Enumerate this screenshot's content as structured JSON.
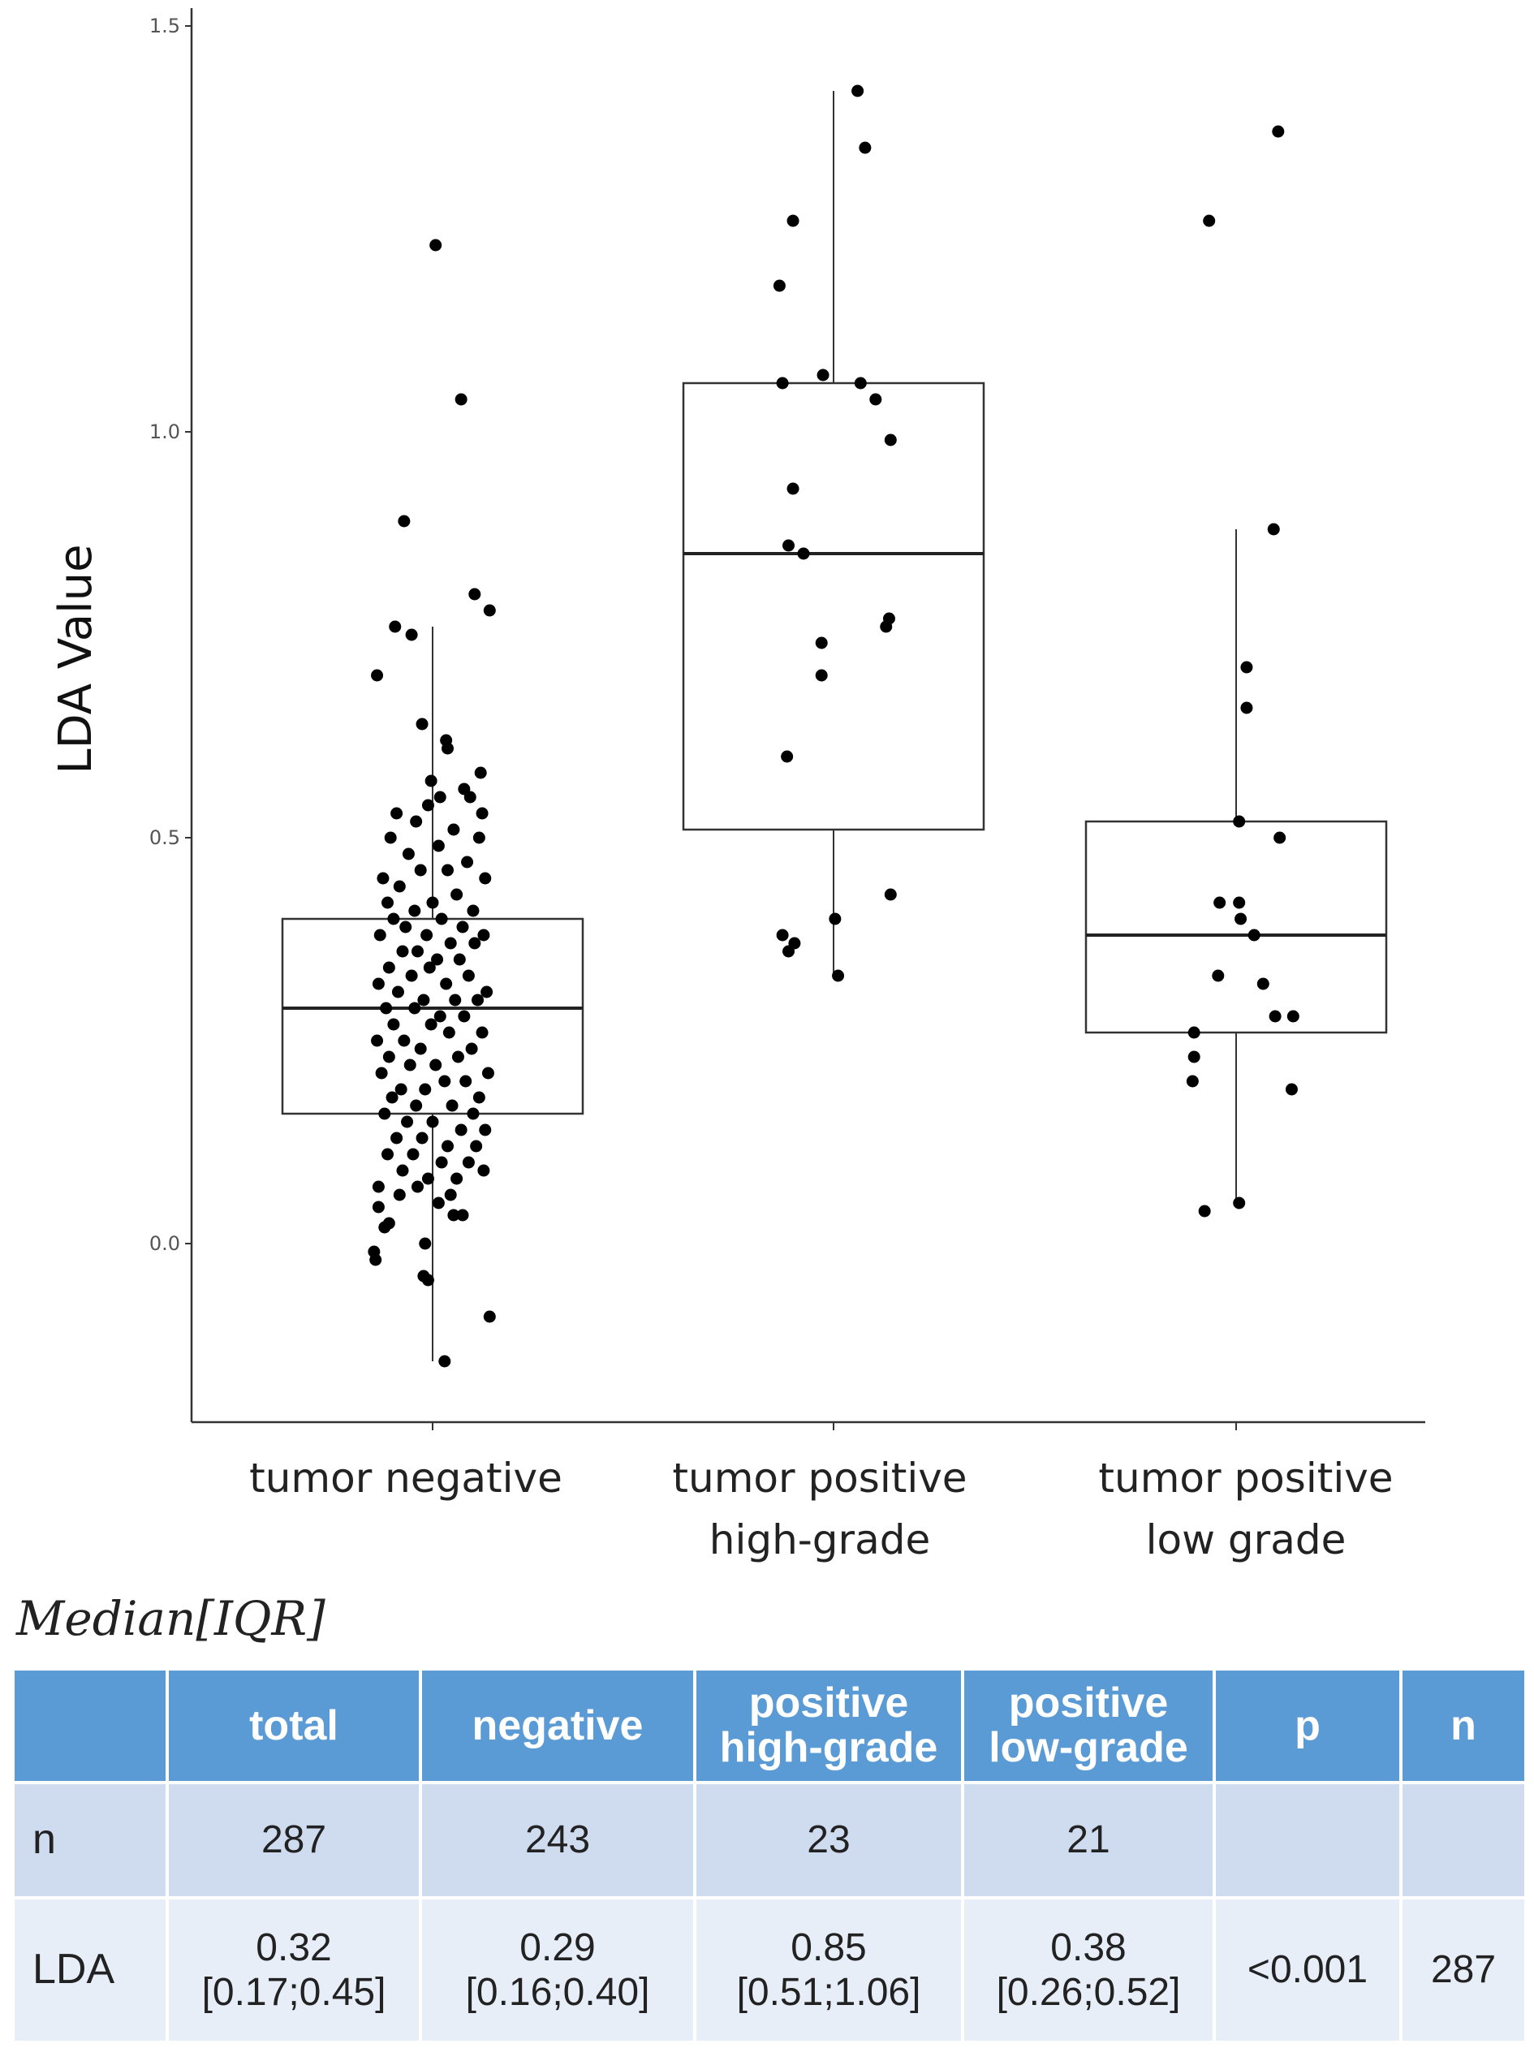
{
  "chart_data": {
    "type": "box",
    "title": "",
    "xlabel": "",
    "ylabel": "LDA Value",
    "ylim": [
      -0.22,
      1.52
    ],
    "yticks": [
      "0.0",
      "0.5",
      "1.0",
      "1.5"
    ],
    "categories": [
      "tumor negative",
      "tumor positive high-grade",
      "tumor positive low grade"
    ],
    "category_label_lines": [
      [
        "tumor negative"
      ],
      [
        "tumor positive",
        "high-grade"
      ],
      [
        "tumor positive",
        "low grade"
      ]
    ],
    "boxes": [
      {
        "name": "tumor negative",
        "q1": 0.16,
        "median": 0.29,
        "q3": 0.4,
        "whisker_low": -0.145,
        "whisker_high": 0.76
      },
      {
        "name": "tumor positive high-grade",
        "q1": 0.51,
        "median": 0.85,
        "q3": 1.06,
        "whisker_low": 0.33,
        "whisker_high": 1.42
      },
      {
        "name": "tumor positive low grade",
        "q1": 0.26,
        "median": 0.38,
        "q3": 0.52,
        "whisker_low": 0.05,
        "whisker_high": 0.88
      }
    ],
    "points": [
      {
        "group": 0,
        "jitter": 0.02,
        "value": 1.23
      },
      {
        "group": 0,
        "jitter": 0.19,
        "value": 1.04
      },
      {
        "group": 0,
        "jitter": -0.19,
        "value": 0.89
      },
      {
        "group": 0,
        "jitter": 0.28,
        "value": 0.8
      },
      {
        "group": 0,
        "jitter": 0.38,
        "value": 0.78
      },
      {
        "group": 0,
        "jitter": -0.25,
        "value": 0.76
      },
      {
        "group": 0,
        "jitter": -0.14,
        "value": 0.75
      },
      {
        "group": 0,
        "jitter": -0.37,
        "value": 0.7
      },
      {
        "group": 0,
        "jitter": -0.07,
        "value": 0.64
      },
      {
        "group": 0,
        "jitter": 0.09,
        "value": 0.62
      },
      {
        "group": 0,
        "jitter": 0.1,
        "value": 0.61
      },
      {
        "group": 0,
        "jitter": 0.32,
        "value": 0.58
      },
      {
        "group": 0,
        "jitter": -0.01,
        "value": 0.57
      },
      {
        "group": 0,
        "jitter": 0.21,
        "value": 0.56
      },
      {
        "group": 0,
        "jitter": 0.05,
        "value": 0.55
      },
      {
        "group": 0,
        "jitter": 0.25,
        "value": 0.55
      },
      {
        "group": 0,
        "jitter": -0.03,
        "value": 0.54
      },
      {
        "group": 0,
        "jitter": 0.33,
        "value": 0.53
      },
      {
        "group": 0,
        "jitter": -0.24,
        "value": 0.53
      },
      {
        "group": 0,
        "jitter": -0.11,
        "value": 0.52
      },
      {
        "group": 0,
        "jitter": 0.14,
        "value": 0.51
      },
      {
        "group": 0,
        "jitter": -0.28,
        "value": 0.5
      },
      {
        "group": 0,
        "jitter": 0.31,
        "value": 0.5
      },
      {
        "group": 0,
        "jitter": 0.04,
        "value": 0.49
      },
      {
        "group": 0,
        "jitter": -0.16,
        "value": 0.48
      },
      {
        "group": 0,
        "jitter": 0.23,
        "value": 0.47
      },
      {
        "group": 0,
        "jitter": -0.08,
        "value": 0.46
      },
      {
        "group": 0,
        "jitter": 0.1,
        "value": 0.46
      },
      {
        "group": 0,
        "jitter": 0.35,
        "value": 0.45
      },
      {
        "group": 0,
        "jitter": -0.33,
        "value": 0.45
      },
      {
        "group": 0,
        "jitter": -0.22,
        "value": 0.44
      },
      {
        "group": 0,
        "jitter": 0.16,
        "value": 0.43
      },
      {
        "group": 0,
        "jitter": 0.0,
        "value": 0.42
      },
      {
        "group": 0,
        "jitter": -0.3,
        "value": 0.42
      },
      {
        "group": 0,
        "jitter": -0.12,
        "value": 0.41
      },
      {
        "group": 0,
        "jitter": 0.27,
        "value": 0.41
      },
      {
        "group": 0,
        "jitter": -0.26,
        "value": 0.4
      },
      {
        "group": 0,
        "jitter": 0.06,
        "value": 0.4
      },
      {
        "group": 0,
        "jitter": 0.2,
        "value": 0.39
      },
      {
        "group": 0,
        "jitter": -0.18,
        "value": 0.39
      },
      {
        "group": 0,
        "jitter": 0.34,
        "value": 0.38
      },
      {
        "group": 0,
        "jitter": -0.04,
        "value": 0.38
      },
      {
        "group": 0,
        "jitter": -0.35,
        "value": 0.38
      },
      {
        "group": 0,
        "jitter": 0.12,
        "value": 0.37
      },
      {
        "group": 0,
        "jitter": 0.28,
        "value": 0.37
      },
      {
        "group": 0,
        "jitter": -0.2,
        "value": 0.36
      },
      {
        "group": 0,
        "jitter": -0.1,
        "value": 0.36
      },
      {
        "group": 0,
        "jitter": 0.03,
        "value": 0.35
      },
      {
        "group": 0,
        "jitter": 0.18,
        "value": 0.35
      },
      {
        "group": 0,
        "jitter": -0.29,
        "value": 0.34
      },
      {
        "group": 0,
        "jitter": -0.02,
        "value": 0.34
      },
      {
        "group": 0,
        "jitter": -0.14,
        "value": 0.33
      },
      {
        "group": 0,
        "jitter": 0.24,
        "value": 0.33
      },
      {
        "group": 0,
        "jitter": -0.36,
        "value": 0.32
      },
      {
        "group": 0,
        "jitter": 0.09,
        "value": 0.32
      },
      {
        "group": 0,
        "jitter": 0.36,
        "value": 0.31
      },
      {
        "group": 0,
        "jitter": -0.23,
        "value": 0.31
      },
      {
        "group": 0,
        "jitter": -0.06,
        "value": 0.3
      },
      {
        "group": 0,
        "jitter": 0.15,
        "value": 0.3
      },
      {
        "group": 0,
        "jitter": 0.3,
        "value": 0.3
      },
      {
        "group": 0,
        "jitter": -0.31,
        "value": 0.29
      },
      {
        "group": 0,
        "jitter": -0.12,
        "value": 0.29
      },
      {
        "group": 0,
        "jitter": 0.05,
        "value": 0.28
      },
      {
        "group": 0,
        "jitter": 0.21,
        "value": 0.28
      },
      {
        "group": 0,
        "jitter": -0.26,
        "value": 0.27
      },
      {
        "group": 0,
        "jitter": -0.01,
        "value": 0.27
      },
      {
        "group": 0,
        "jitter": 0.33,
        "value": 0.26
      },
      {
        "group": 0,
        "jitter": 0.11,
        "value": 0.26
      },
      {
        "group": 0,
        "jitter": -0.19,
        "value": 0.25
      },
      {
        "group": 0,
        "jitter": -0.37,
        "value": 0.25
      },
      {
        "group": 0,
        "jitter": -0.08,
        "value": 0.24
      },
      {
        "group": 0,
        "jitter": 0.26,
        "value": 0.24
      },
      {
        "group": 0,
        "jitter": 0.17,
        "value": 0.23
      },
      {
        "group": 0,
        "jitter": -0.29,
        "value": 0.23
      },
      {
        "group": 0,
        "jitter": 0.02,
        "value": 0.22
      },
      {
        "group": 0,
        "jitter": -0.15,
        "value": 0.22
      },
      {
        "group": 0,
        "jitter": 0.37,
        "value": 0.21
      },
      {
        "group": 0,
        "jitter": -0.34,
        "value": 0.21
      },
      {
        "group": 0,
        "jitter": 0.08,
        "value": 0.2
      },
      {
        "group": 0,
        "jitter": 0.22,
        "value": 0.2
      },
      {
        "group": 0,
        "jitter": -0.21,
        "value": 0.19
      },
      {
        "group": 0,
        "jitter": -0.05,
        "value": 0.19
      },
      {
        "group": 0,
        "jitter": 0.31,
        "value": 0.18
      },
      {
        "group": 0,
        "jitter": -0.27,
        "value": 0.18
      },
      {
        "group": 0,
        "jitter": 0.13,
        "value": 0.17
      },
      {
        "group": 0,
        "jitter": -0.11,
        "value": 0.17
      },
      {
        "group": 0,
        "jitter": 0.27,
        "value": 0.16
      },
      {
        "group": 0,
        "jitter": -0.32,
        "value": 0.16
      },
      {
        "group": 0,
        "jitter": 0.0,
        "value": 0.15
      },
      {
        "group": 0,
        "jitter": -0.17,
        "value": 0.15
      },
      {
        "group": 0,
        "jitter": 0.19,
        "value": 0.14
      },
      {
        "group": 0,
        "jitter": 0.35,
        "value": 0.14
      },
      {
        "group": 0,
        "jitter": -0.24,
        "value": 0.13
      },
      {
        "group": 0,
        "jitter": -0.07,
        "value": 0.13
      },
      {
        "group": 0,
        "jitter": 0.1,
        "value": 0.12
      },
      {
        "group": 0,
        "jitter": 0.29,
        "value": 0.12
      },
      {
        "group": 0,
        "jitter": -0.3,
        "value": 0.11
      },
      {
        "group": 0,
        "jitter": -0.13,
        "value": 0.11
      },
      {
        "group": 0,
        "jitter": 0.06,
        "value": 0.1
      },
      {
        "group": 0,
        "jitter": 0.24,
        "value": 0.1
      },
      {
        "group": 0,
        "jitter": -0.2,
        "value": 0.09
      },
      {
        "group": 0,
        "jitter": 0.34,
        "value": 0.09
      },
      {
        "group": 0,
        "jitter": -0.03,
        "value": 0.08
      },
      {
        "group": 0,
        "jitter": 0.16,
        "value": 0.08
      },
      {
        "group": 0,
        "jitter": -0.36,
        "value": 0.07
      },
      {
        "group": 0,
        "jitter": -0.1,
        "value": 0.07
      },
      {
        "group": 0,
        "jitter": 0.12,
        "value": 0.06
      },
      {
        "group": 0,
        "jitter": -0.22,
        "value": 0.06
      },
      {
        "group": 0,
        "jitter": 0.04,
        "value": 0.05
      },
      {
        "group": 0,
        "jitter": -0.36,
        "value": 0.045
      },
      {
        "group": 0,
        "jitter": 0.14,
        "value": 0.035
      },
      {
        "group": 0,
        "jitter": 0.2,
        "value": 0.035
      },
      {
        "group": 0,
        "jitter": -0.29,
        "value": 0.025
      },
      {
        "group": 0,
        "jitter": -0.32,
        "value": 0.02
      },
      {
        "group": 0,
        "jitter": -0.39,
        "value": -0.01
      },
      {
        "group": 0,
        "jitter": -0.38,
        "value": -0.02
      },
      {
        "group": 0,
        "jitter": -0.05,
        "value": 0.0
      },
      {
        "group": 0,
        "jitter": -0.06,
        "value": -0.04
      },
      {
        "group": 0,
        "jitter": -0.03,
        "value": -0.045
      },
      {
        "group": 0,
        "jitter": 0.38,
        "value": -0.09
      },
      {
        "group": 0,
        "jitter": 0.08,
        "value": -0.145
      },
      {
        "group": 1,
        "jitter": 0.16,
        "value": 1.42
      },
      {
        "group": 1,
        "jitter": 0.21,
        "value": 1.35
      },
      {
        "group": 1,
        "jitter": -0.27,
        "value": 1.26
      },
      {
        "group": 1,
        "jitter": -0.36,
        "value": 1.18
      },
      {
        "group": 1,
        "jitter": -0.07,
        "value": 1.07
      },
      {
        "group": 1,
        "jitter": -0.34,
        "value": 1.06
      },
      {
        "group": 1,
        "jitter": 0.18,
        "value": 1.06
      },
      {
        "group": 1,
        "jitter": 0.28,
        "value": 1.04
      },
      {
        "group": 1,
        "jitter": 0.38,
        "value": 0.99
      },
      {
        "group": 1,
        "jitter": -0.27,
        "value": 0.93
      },
      {
        "group": 1,
        "jitter": -0.3,
        "value": 0.86
      },
      {
        "group": 1,
        "jitter": -0.2,
        "value": 0.85
      },
      {
        "group": 1,
        "jitter": 0.37,
        "value": 0.77
      },
      {
        "group": 1,
        "jitter": 0.35,
        "value": 0.76
      },
      {
        "group": 1,
        "jitter": -0.08,
        "value": 0.74
      },
      {
        "group": 1,
        "jitter": -0.08,
        "value": 0.7
      },
      {
        "group": 1,
        "jitter": -0.31,
        "value": 0.6
      },
      {
        "group": 1,
        "jitter": 0.38,
        "value": 0.43
      },
      {
        "group": 1,
        "jitter": 0.01,
        "value": 0.4
      },
      {
        "group": 1,
        "jitter": -0.34,
        "value": 0.38
      },
      {
        "group": 1,
        "jitter": -0.26,
        "value": 0.37
      },
      {
        "group": 1,
        "jitter": 0.03,
        "value": 0.33
      },
      {
        "group": 1,
        "jitter": -0.3,
        "value": 0.36
      },
      {
        "group": 2,
        "jitter": 0.28,
        "value": 1.37
      },
      {
        "group": 2,
        "jitter": -0.18,
        "value": 1.26
      },
      {
        "group": 2,
        "jitter": 0.25,
        "value": 0.88
      },
      {
        "group": 2,
        "jitter": 0.07,
        "value": 0.71
      },
      {
        "group": 2,
        "jitter": 0.07,
        "value": 0.66
      },
      {
        "group": 2,
        "jitter": 0.02,
        "value": 0.52
      },
      {
        "group": 2,
        "jitter": 0.29,
        "value": 0.5
      },
      {
        "group": 2,
        "jitter": -0.11,
        "value": 0.42
      },
      {
        "group": 2,
        "jitter": 0.02,
        "value": 0.42
      },
      {
        "group": 2,
        "jitter": 0.03,
        "value": 0.4
      },
      {
        "group": 2,
        "jitter": 0.12,
        "value": 0.38
      },
      {
        "group": 2,
        "jitter": -0.12,
        "value": 0.33
      },
      {
        "group": 2,
        "jitter": 0.18,
        "value": 0.32
      },
      {
        "group": 2,
        "jitter": 0.26,
        "value": 0.28
      },
      {
        "group": 2,
        "jitter": 0.38,
        "value": 0.28
      },
      {
        "group": 2,
        "jitter": -0.28,
        "value": 0.26
      },
      {
        "group": 2,
        "jitter": -0.28,
        "value": 0.23
      },
      {
        "group": 2,
        "jitter": -0.29,
        "value": 0.2
      },
      {
        "group": 2,
        "jitter": 0.37,
        "value": 0.19
      },
      {
        "group": 2,
        "jitter": -0.21,
        "value": 0.04
      },
      {
        "group": 2,
        "jitter": 0.02,
        "value": 0.05
      }
    ]
  },
  "caption": "Median[IQR]",
  "table": {
    "headers": [
      "",
      "total",
      "negative",
      "positive high-grade",
      "positive low-grade",
      "p",
      "n"
    ],
    "header_lines": [
      [
        ""
      ],
      [
        "total"
      ],
      [
        "negative"
      ],
      [
        "positive",
        "high-grade"
      ],
      [
        "positive",
        "low-grade"
      ],
      [
        "p"
      ],
      [
        "n"
      ]
    ],
    "rows": [
      {
        "label": "n",
        "cells": [
          [
            "287"
          ],
          [
            "243"
          ],
          [
            "23"
          ],
          [
            "21"
          ],
          [
            ""
          ],
          [
            ""
          ]
        ]
      },
      {
        "label": "LDA",
        "cells": [
          [
            "0.32",
            "[0.17;0.45]"
          ],
          [
            "0.29",
            "[0.16;0.40]"
          ],
          [
            "0.85",
            "[0.51;1.06]"
          ],
          [
            "0.38",
            "[0.26;0.52]"
          ],
          [
            "<0.001"
          ],
          [
            "287"
          ]
        ]
      }
    ]
  },
  "colors": {
    "header_bg": "#5b9bd5",
    "row_n_bg": "#cfdcef",
    "row_lda_bg": "#e8eef8",
    "points": "#000000"
  }
}
